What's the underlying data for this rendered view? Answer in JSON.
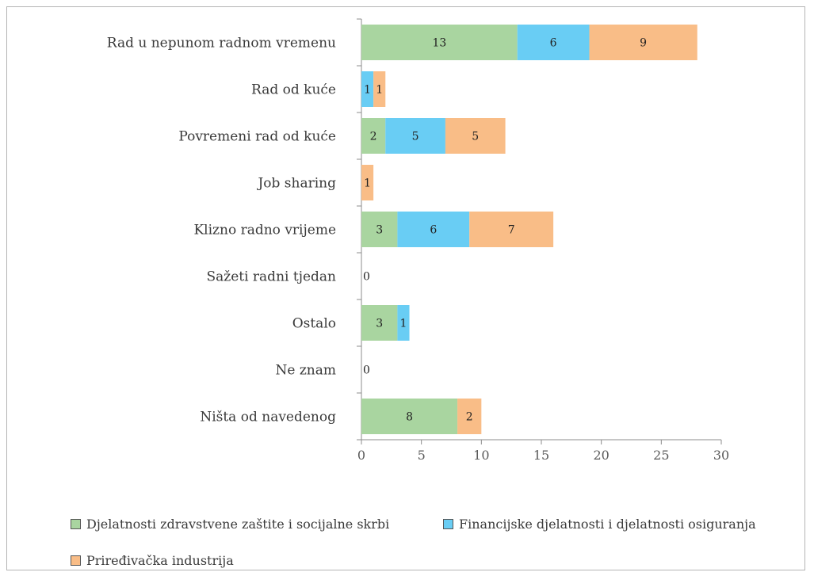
{
  "chart_data": {
    "type": "bar",
    "orientation": "horizontal",
    "stacked": true,
    "categories": [
      "Rad u nepunom radnom vremenu",
      "Rad od kuće",
      "Povremeni rad od kuće",
      "Job sharing",
      "Klizno radno vrijeme",
      "Sažeti radni tjedan",
      "Ostalo",
      "Ne znam",
      "Ništa od navedenog"
    ],
    "series": [
      {
        "name": "Djelatnosti zdravstvene zaštite i socijalne skrbi",
        "color": "#a9d5a0",
        "values": [
          13,
          0,
          2,
          0,
          3,
          0,
          3,
          0,
          8
        ]
      },
      {
        "name": "Financijske djelatnosti i djelatnosti osiguranja",
        "color": "#69cdf4",
        "values": [
          6,
          1,
          5,
          0,
          6,
          0,
          1,
          0,
          0
        ]
      },
      {
        "name": "Priređivačka industrija",
        "color": "#f9bd87",
        "values": [
          9,
          1,
          5,
          1,
          7,
          0,
          0,
          0,
          2
        ]
      }
    ],
    "zero_labels": [
      false,
      false,
      false,
      false,
      false,
      true,
      false,
      true,
      false
    ],
    "xlim": [
      0,
      30
    ],
    "xticks": [
      0,
      5,
      10,
      15,
      20,
      25,
      30
    ],
    "grid": false,
    "legend_position": "bottom",
    "title": "",
    "xlabel": "",
    "ylabel": ""
  }
}
